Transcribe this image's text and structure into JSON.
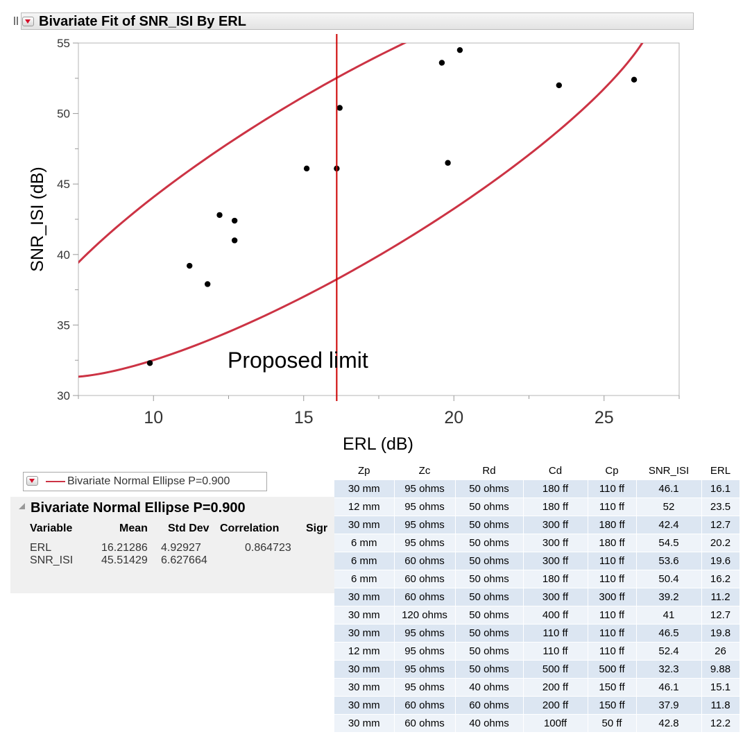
{
  "header": {
    "title": "Bivariate Fit of SNR_ISI By ERL"
  },
  "chart_data": {
    "type": "scatter",
    "xlabel": "ERL (dB)",
    "ylabel": "SNR_ISI (dB)",
    "xlim": [
      7.5,
      27.5
    ],
    "ylim": [
      30,
      55
    ],
    "xticks": [
      10,
      15,
      20,
      25
    ],
    "yticks": [
      30,
      35,
      40,
      45,
      50,
      55
    ],
    "grid": false,
    "points": [
      {
        "x": 16.1,
        "y": 46.1
      },
      {
        "x": 23.5,
        "y": 52
      },
      {
        "x": 12.7,
        "y": 42.4
      },
      {
        "x": 20.2,
        "y": 54.5
      },
      {
        "x": 19.6,
        "y": 53.6
      },
      {
        "x": 16.2,
        "y": 50.4
      },
      {
        "x": 11.2,
        "y": 39.2
      },
      {
        "x": 12.7,
        "y": 41
      },
      {
        "x": 19.8,
        "y": 46.5
      },
      {
        "x": 26,
        "y": 52.4
      },
      {
        "x": 9.88,
        "y": 32.3
      },
      {
        "x": 15.1,
        "y": 46.1
      },
      {
        "x": 11.8,
        "y": 37.9
      },
      {
        "x": 12.2,
        "y": 42.8
      }
    ],
    "reference_line": {
      "x": 16.1,
      "label": "Proposed limit",
      "color": "#cc0000"
    },
    "ellipse": {
      "color": "#cc3344",
      "p": 0.9,
      "mean_x": 16.21286,
      "mean_y": 45.51429,
      "std_x": 4.92927,
      "std_y": 6.627664,
      "correlation": 0.864723
    },
    "point_color": "#000000"
  },
  "legend": {
    "label": "Bivariate Normal Ellipse P=0.900",
    "line_color": "#cc3344"
  },
  "report": {
    "title": "Bivariate Normal Ellipse P=0.900",
    "headers": [
      "Variable",
      "Mean",
      "Std Dev",
      "Correlation",
      "Sigr"
    ],
    "rows": [
      {
        "variable": "ERL",
        "mean": "16.21286",
        "std": "4.92927",
        "corr": "0.864723"
      },
      {
        "variable": "SNR_ISI",
        "mean": "45.51429",
        "std": "6.627664",
        "corr": ""
      }
    ]
  },
  "data_table": {
    "columns": [
      "Zp",
      "Zc",
      "Rd",
      "Cd",
      "Cp",
      "SNR_ISI",
      "ERL"
    ],
    "rows": [
      [
        "30 mm",
        "95 ohms",
        "50 ohms",
        "180 ff",
        "110 ff",
        "46.1",
        "16.1"
      ],
      [
        "12 mm",
        "95 ohms",
        "50 ohms",
        "180 ff",
        "110 ff",
        "52",
        "23.5"
      ],
      [
        "30 mm",
        "95 ohms",
        "50 ohms",
        "300 ff",
        "180 ff",
        "42.4",
        "12.7"
      ],
      [
        "6 mm",
        "95 ohms",
        "50 ohms",
        "300 ff",
        "180 ff",
        "54.5",
        "20.2"
      ],
      [
        "6 mm",
        "60 ohms",
        "50 ohms",
        "300 ff",
        "110 ff",
        "53.6",
        "19.6"
      ],
      [
        "6 mm",
        "60 ohms",
        "50 ohms",
        "180 ff",
        "110 ff",
        "50.4",
        "16.2"
      ],
      [
        "30 mm",
        "60 ohms",
        "50 ohms",
        "300 ff",
        "300 ff",
        "39.2",
        "11.2"
      ],
      [
        "30 mm",
        "120 ohms",
        "50 ohms",
        "400 ff",
        "110 ff",
        "41",
        "12.7"
      ],
      [
        "30 mm",
        "95 ohms",
        "50 ohms",
        "110 ff",
        "110 ff",
        "46.5",
        "19.8"
      ],
      [
        "12 mm",
        "95 ohms",
        "50 ohms",
        "110 ff",
        "110 ff",
        "52.4",
        "26"
      ],
      [
        "30 mm",
        "95 ohms",
        "50 ohms",
        "500 ff",
        "500 ff",
        "32.3",
        "9.88"
      ],
      [
        "30 mm",
        "95 ohms",
        "40 ohms",
        "200 ff",
        "150 ff",
        "46.1",
        "15.1"
      ],
      [
        "30 mm",
        "60 ohms",
        "60 ohms",
        "200 ff",
        "150 ff",
        "37.9",
        "11.8"
      ],
      [
        "30 mm",
        "60 ohms",
        "40 ohms",
        "100ff",
        "50 ff",
        "42.8",
        "12.2"
      ]
    ]
  }
}
